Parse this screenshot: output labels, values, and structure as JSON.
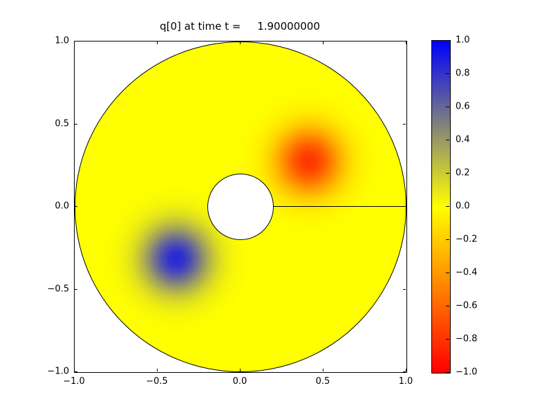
{
  "figure": {
    "title": "q[0] at time t =     1.90000000",
    "background_color": "#ffffff"
  },
  "axes": {
    "x_tick_labels": [
      "−1.0",
      "−0.5",
      "0.0",
      "0.5",
      "1.0"
    ],
    "y_tick_labels": [
      "1.0",
      "0.5",
      "0.0",
      "−0.5",
      "−1.0"
    ],
    "xlim": [
      -1.0,
      1.0
    ],
    "ylim": [
      -1.0,
      1.0
    ]
  },
  "colorbar": {
    "tick_labels": [
      "1.0",
      "0.8",
      "0.6",
      "0.4",
      "0.2",
      "0.0",
      "−0.2",
      "−0.4",
      "−0.6",
      "−0.8",
      "−1.0"
    ],
    "clim": [
      -1.0,
      1.0
    ],
    "orientation": "vertical"
  },
  "chart_data": {
    "type": "heatmap",
    "title": "q[0] at time t =     1.90000000",
    "time": 1.9,
    "quantity": "q[0]",
    "xlim": [
      -1.0,
      1.0
    ],
    "ylim": [
      -1.0,
      1.0
    ],
    "x_ticks": [
      -1.0,
      -0.5,
      0.0,
      0.5,
      1.0
    ],
    "y_ticks": [
      -1.0,
      -0.5,
      0.0,
      0.5,
      1.0
    ],
    "grid": false,
    "colormap_stops": [
      {
        "value": -1.0,
        "color": "#ff0000"
      },
      {
        "value": 0.0,
        "color": "#ffff00"
      },
      {
        "value": 1.0,
        "color": "#0000ff"
      }
    ],
    "colorbar_ticks": [
      1.0,
      0.8,
      0.6,
      0.4,
      0.2,
      0.0,
      -0.2,
      -0.4,
      -0.6,
      -0.8,
      -1.0
    ],
    "domain": {
      "shape": "annulus",
      "center": [
        0.0,
        0.0
      ],
      "inner_radius": 0.2,
      "outer_radius": 1.0,
      "hole_fill": "#ffffff",
      "outline_color": "#000000",
      "grid_seam_line": {
        "from": [
          0.2,
          0.0
        ],
        "to": [
          1.0,
          0.0
        ]
      }
    },
    "background_value": 0.0,
    "features": [
      {
        "name": "negative-gaussian-blob",
        "center_xy": [
          0.41,
          0.28
        ],
        "peak_value": -0.8,
        "approx_radius": 0.45
      },
      {
        "name": "positive-gaussian-blob",
        "center_xy": [
          -0.39,
          -0.31
        ],
        "peak_value": 0.85,
        "approx_radius": 0.45
      }
    ]
  }
}
